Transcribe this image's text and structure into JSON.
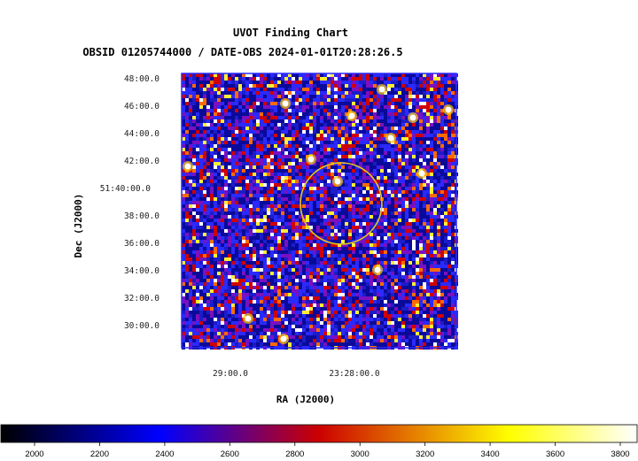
{
  "chart_data": {
    "type": "heatmap",
    "title": "UVOT Finding Chart",
    "subtitle": "OBSID 01205744000 / DATE-OBS 2024-01-01T20:28:26.5",
    "xlabel": "RA (J2000)",
    "ylabel": "Dec (J2000)",
    "x_ticks": [
      "29:00.0",
      "23:28:00.0"
    ],
    "y_ticks": [
      "48:00.0",
      "46:00.0",
      "44:00.0",
      "42:00.0",
      "51:40:00.0",
      "38:00.0",
      "36:00.0",
      "34:00.0",
      "32:00.0",
      "30:00.0"
    ],
    "colorbar": {
      "min": 2000,
      "max": 3800,
      "ticks": [
        2000,
        2200,
        2400,
        2600,
        2800,
        3000,
        3200,
        3400,
        3600,
        3800
      ],
      "colormap_stops": [
        "#000000",
        "#0000ff",
        "#cc0000",
        "#ffff00",
        "#ffffff"
      ]
    },
    "marker": {
      "shape": "circle",
      "color": "#e6c619"
    },
    "border_color": "#2a2aff",
    "grid": false
  }
}
